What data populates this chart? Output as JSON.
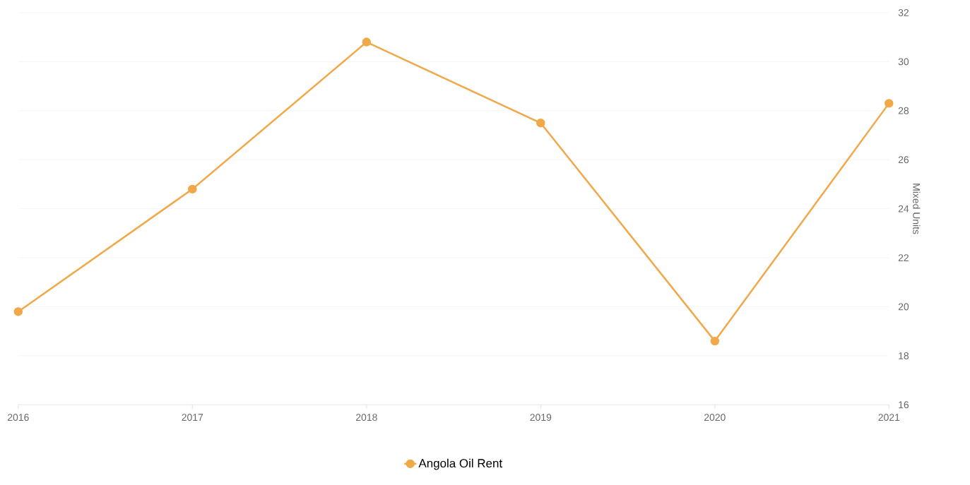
{
  "chart_data": {
    "type": "line",
    "ylabel": "Mixed Units",
    "categories": [
      "2016",
      "2017",
      "2018",
      "2019",
      "2020",
      "2021"
    ],
    "series": [
      {
        "name": "Angola Oil Rent",
        "color": "#f0a848",
        "values": [
          19.8,
          24.8,
          30.8,
          27.5,
          18.6,
          28.3
        ]
      }
    ],
    "ylim": [
      16,
      32
    ],
    "yticks": [
      16,
      18,
      20,
      22,
      24,
      26,
      28,
      30,
      32
    ],
    "grid": "y",
    "legend": "bottom",
    "marker": "circle",
    "line_style": "solid"
  }
}
